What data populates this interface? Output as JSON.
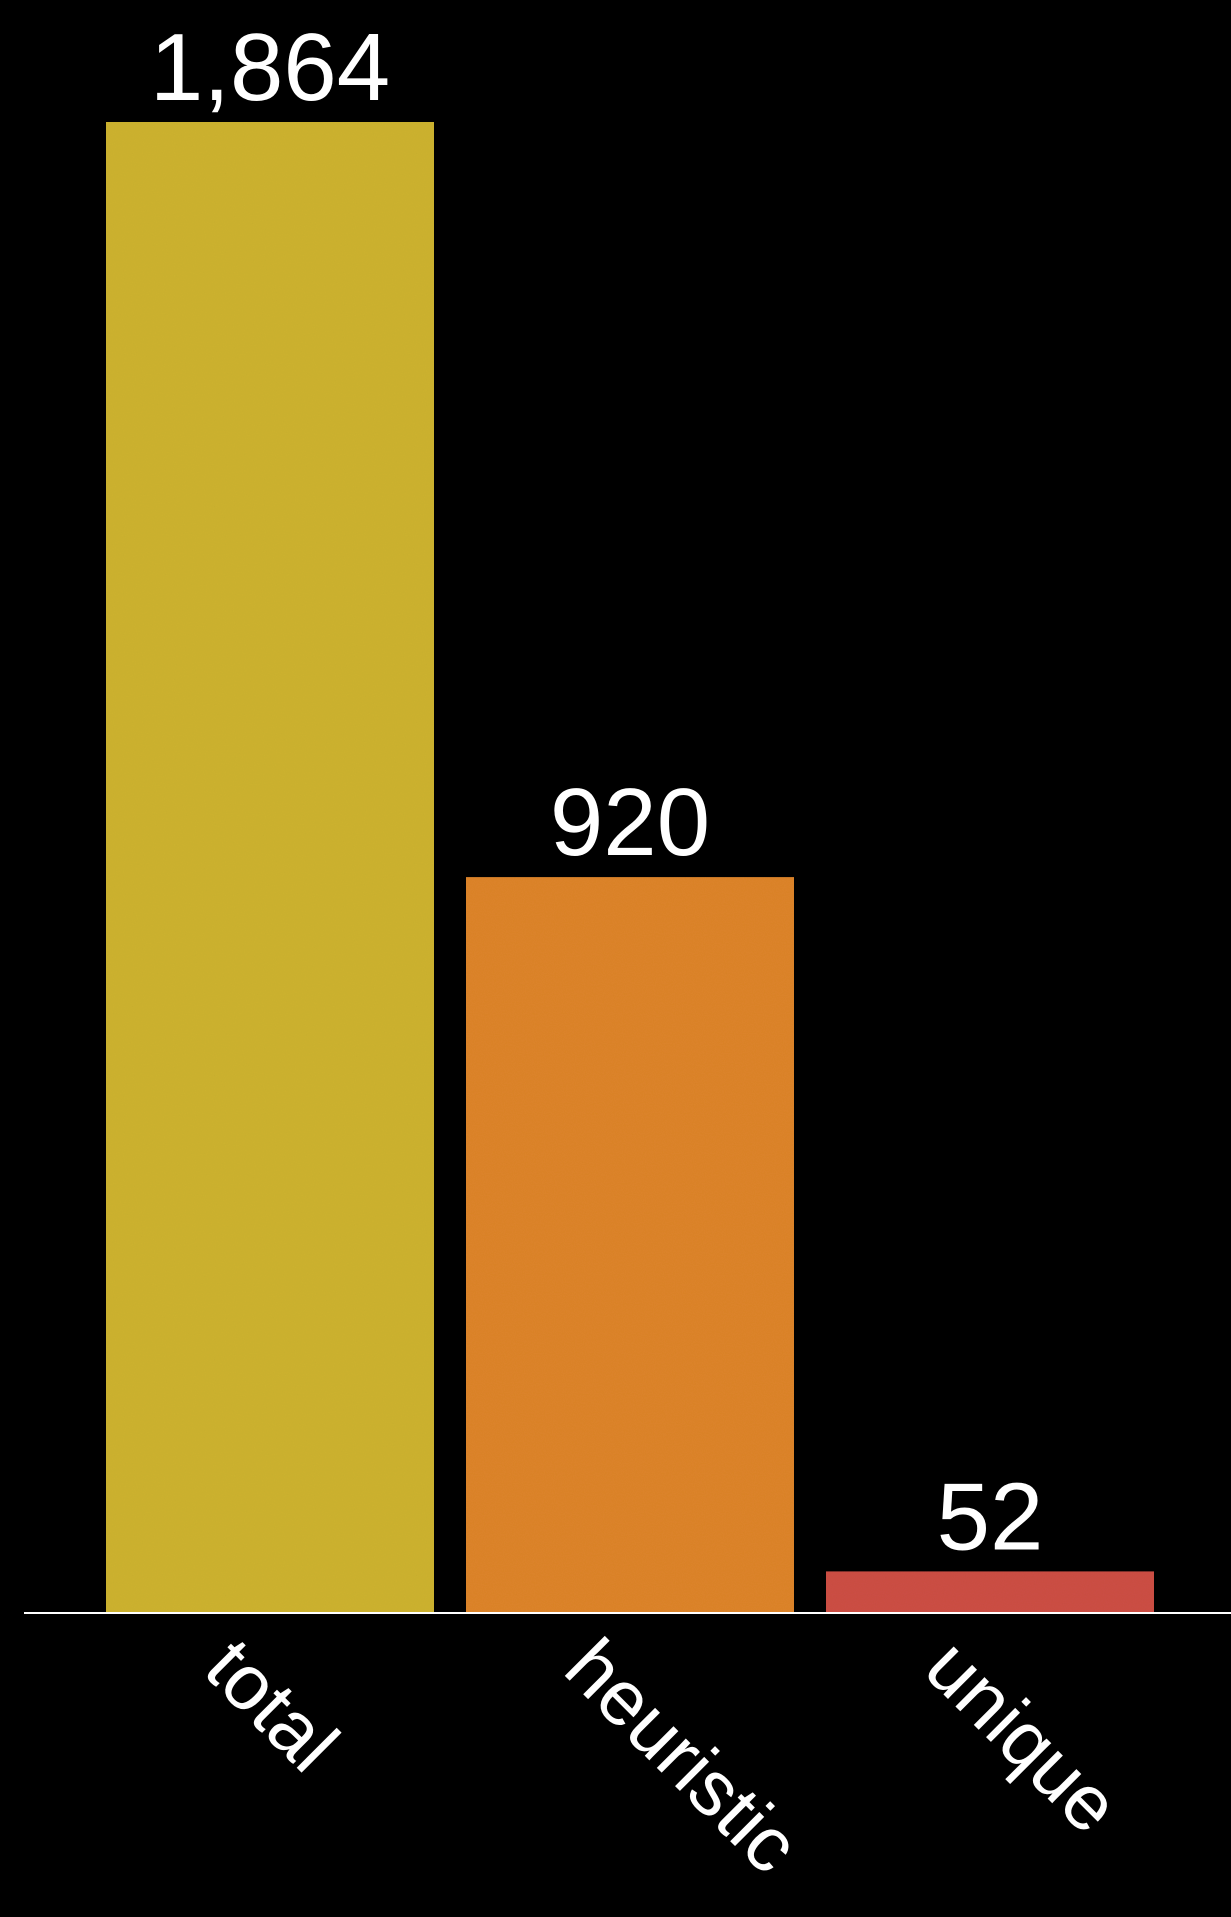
{
  "chart_data": {
    "type": "bar",
    "categories": [
      "total",
      "heuristic",
      "unique"
    ],
    "values": [
      1864,
      920,
      52
    ],
    "value_labels": [
      "1,864",
      "920",
      "52"
    ],
    "colors": [
      "#CDB22F",
      "#DD8429",
      "#CC4E44"
    ],
    "title": "",
    "xlabel": "",
    "ylabel": "",
    "ylim": [
      0,
      1864
    ],
    "grid": false,
    "legend": "none",
    "category_label_rotation_deg": 45
  }
}
